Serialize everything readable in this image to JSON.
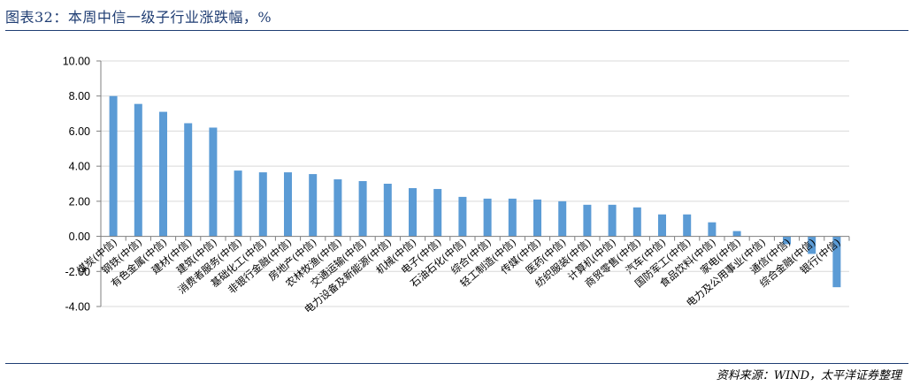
{
  "header": {
    "title": "图表32：本周中信一级子行业涨跌幅，%"
  },
  "footer": {
    "source": "资料来源：WIND，太平洋证券整理"
  },
  "colors": {
    "bar": "#5b9bd5",
    "axis": "#7f7f7f",
    "grid": "#d9d9d9",
    "title": "#1f3d73"
  },
  "chart_data": {
    "type": "bar",
    "title": "",
    "xlabel": "",
    "ylabel": "",
    "ylim": [
      -4,
      10
    ],
    "y_ticks": [
      "10.00",
      "8.00",
      "6.00",
      "4.00",
      "2.00",
      "0.00",
      "-2.00",
      "-4.00"
    ],
    "grid": true,
    "legend": "none",
    "categories": [
      "煤炭(中信)",
      "钢铁(中信)",
      "有色金属(中信)",
      "建材(中信)",
      "建筑(中信)",
      "消费者服务(中信)",
      "基础化工(中信)",
      "非银行金融(中信)",
      "房地产(中信)",
      "农林牧渔(中信)",
      "交通运输(中信)",
      "电力设备及新能源(中信)",
      "机械(中信)",
      "电子(中信)",
      "石油石化(中信)",
      "综合(中信)",
      "轻工制造(中信)",
      "传媒(中信)",
      "医药(中信)",
      "纺织服装(中信)",
      "计算机(中信)",
      "商贸零售(中信)",
      "汽车(中信)",
      "国防军工(中信)",
      "食品饮料(中信)",
      "家电(中信)",
      "电力及公用事业(中信)",
      "通信(中信)",
      "综合金融(中信)",
      "银行(中信)"
    ],
    "values": [
      8.0,
      7.55,
      7.1,
      6.45,
      6.2,
      3.75,
      3.65,
      3.65,
      3.55,
      3.25,
      3.15,
      3.0,
      2.75,
      2.7,
      2.25,
      2.15,
      2.15,
      2.1,
      2.0,
      1.8,
      1.8,
      1.65,
      1.25,
      1.25,
      0.8,
      0.3,
      0.0,
      -0.45,
      -1.0,
      -2.9
    ]
  }
}
